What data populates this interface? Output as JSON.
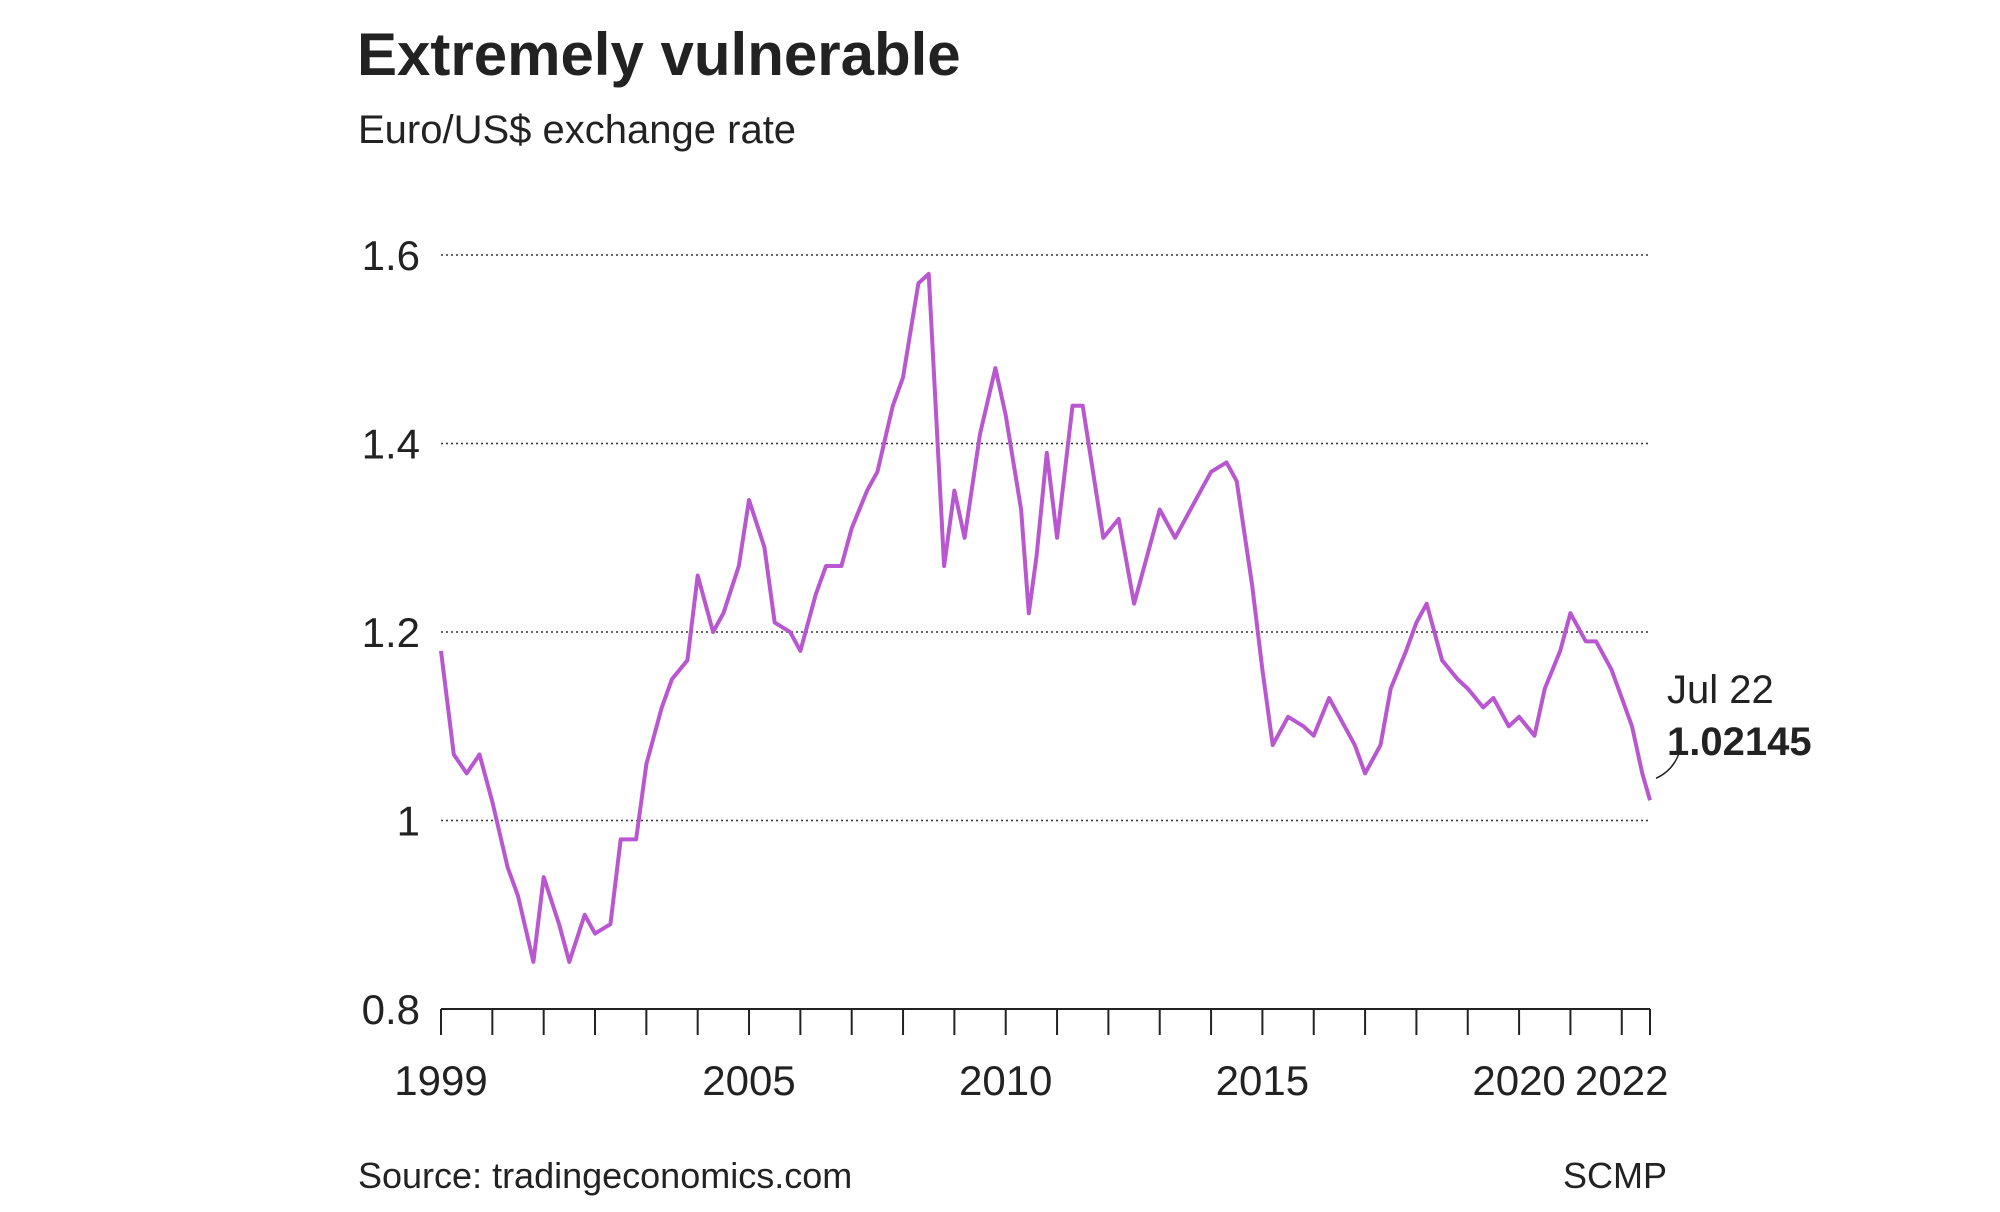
{
  "chart_data": {
    "type": "line",
    "title": "Extremely vulnerable",
    "subtitle": "Euro/US$ exchange rate",
    "source": "Source: tradingeconomics.com",
    "credit": "SCMP",
    "annotation": "Jul 22",
    "color": "#b857d0",
    "grid": true,
    "ylim": [
      0.8,
      1.6
    ],
    "yticks": [
      0.8,
      1.0,
      1.2,
      1.4,
      1.6
    ],
    "xlim": [
      1999,
      2022.55
    ],
    "xticks": [
      1999,
      2005,
      2010,
      2015,
      2020,
      2022
    ],
    "xminor_ticks": [
      1999,
      2000,
      2001,
      2002,
      2003,
      2004,
      2005,
      2006,
      2007,
      2008,
      2009,
      2010,
      2011,
      2012,
      2013,
      2014,
      2015,
      2016,
      2017,
      2018,
      2019,
      2020,
      2021,
      2022,
      2022.55
    ],
    "x": [
      1999.0,
      1999.25,
      1999.5,
      1999.75,
      2000.0,
      2000.3,
      2000.5,
      2000.8,
      2001.0,
      2001.3,
      2001.5,
      2001.8,
      2002.0,
      2002.3,
      2002.5,
      2002.8,
      2003.0,
      2003.3,
      2003.5,
      2003.8,
      2004.0,
      2004.3,
      2004.5,
      2004.8,
      2005.0,
      2005.3,
      2005.5,
      2005.8,
      2006.0,
      2006.3,
      2006.5,
      2006.8,
      2007.0,
      2007.3,
      2007.5,
      2007.8,
      2008.0,
      2008.3,
      2008.5,
      2008.8,
      2009.0,
      2009.2,
      2009.5,
      2009.8,
      2010.0,
      2010.3,
      2010.45,
      2010.6,
      2010.8,
      2011.0,
      2011.3,
      2011.5,
      2011.7,
      2011.9,
      2012.2,
      2012.5,
      2012.8,
      2013.0,
      2013.3,
      2013.5,
      2013.8,
      2014.0,
      2014.3,
      2014.5,
      2014.8,
      2015.0,
      2015.2,
      2015.5,
      2015.8,
      2016.0,
      2016.3,
      2016.5,
      2016.8,
      2017.0,
      2017.3,
      2017.5,
      2017.8,
      2018.0,
      2018.2,
      2018.5,
      2018.8,
      2019.0,
      2019.3,
      2019.5,
      2019.8,
      2020.0,
      2020.3,
      2020.5,
      2020.8,
      2021.0,
      2021.3,
      2021.5,
      2021.8,
      2022.0,
      2022.2,
      2022.4,
      2022.55
    ],
    "values": [
      1.18,
      1.07,
      1.05,
      1.07,
      1.02,
      0.95,
      0.92,
      0.85,
      0.94,
      0.89,
      0.85,
      0.9,
      0.88,
      0.89,
      0.98,
      0.98,
      1.06,
      1.12,
      1.15,
      1.17,
      1.26,
      1.2,
      1.22,
      1.27,
      1.34,
      1.29,
      1.21,
      1.2,
      1.18,
      1.24,
      1.27,
      1.27,
      1.31,
      1.35,
      1.37,
      1.44,
      1.47,
      1.57,
      1.58,
      1.27,
      1.35,
      1.3,
      1.41,
      1.48,
      1.43,
      1.33,
      1.22,
      1.28,
      1.39,
      1.3,
      1.44,
      1.44,
      1.37,
      1.3,
      1.32,
      1.23,
      1.29,
      1.33,
      1.3,
      1.32,
      1.35,
      1.37,
      1.38,
      1.36,
      1.25,
      1.16,
      1.08,
      1.11,
      1.1,
      1.09,
      1.13,
      1.11,
      1.08,
      1.05,
      1.08,
      1.14,
      1.18,
      1.21,
      1.23,
      1.17,
      1.15,
      1.14,
      1.12,
      1.13,
      1.1,
      1.11,
      1.09,
      1.14,
      1.18,
      1.22,
      1.19,
      1.19,
      1.16,
      1.13,
      1.1,
      1.05,
      1.02145
    ]
  }
}
